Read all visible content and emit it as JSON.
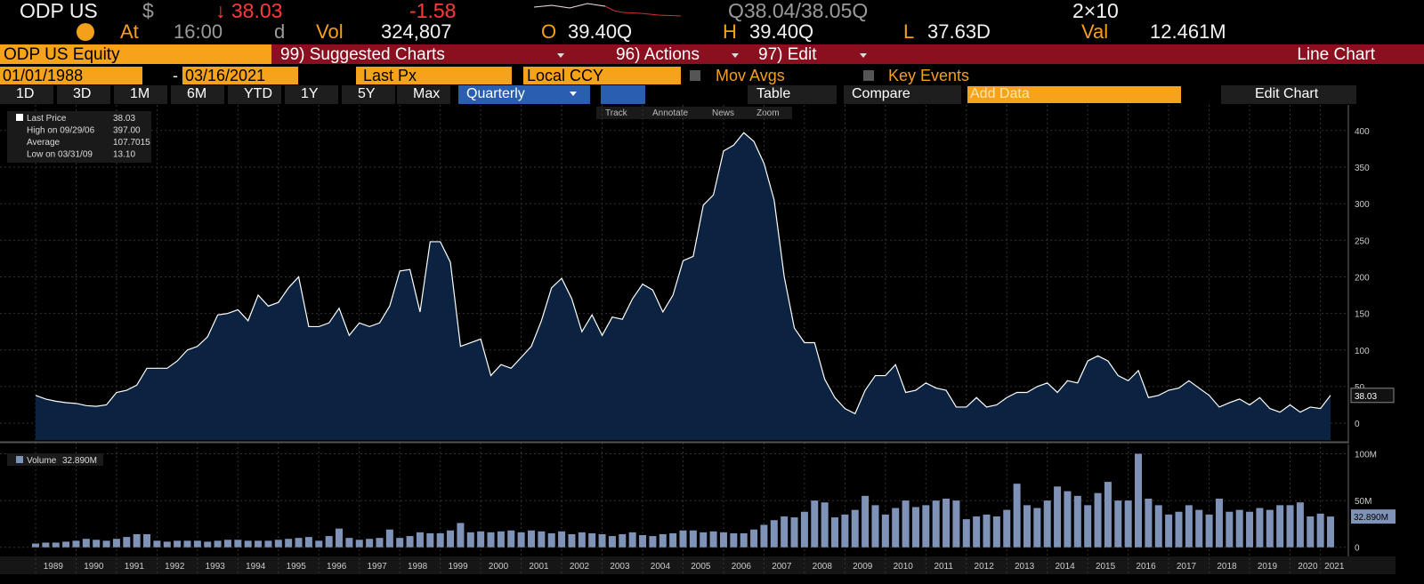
{
  "header": {
    "ticker": "ODP US",
    "currency": "$",
    "last": "↓ 38.03",
    "change": "-1.58",
    "quote": "Q38.04/38.05Q",
    "size": "2×10",
    "at": "At",
    "time": "16:00",
    "time_src": "d",
    "vol_label": "Vol",
    "vol": "324,807",
    "open_label": "O",
    "open": "39.40Q",
    "high_label": "H",
    "high": "39.40Q",
    "low_label": "L",
    "low": "37.63D",
    "val_label": "Val",
    "val": "12.461M"
  },
  "menu": {
    "security": "ODP US Equity",
    "suggested": "99) Suggested Charts",
    "actions": "96) Actions",
    "edit": "97) Edit",
    "chart_kind": "Line Chart"
  },
  "settings": {
    "start": "01/01/1988",
    "dash": "-",
    "end": "03/16/2021",
    "field": "Last Px",
    "ccy": "Local CCY",
    "mov_avgs": "Mov Avgs",
    "key_events": "Key Events"
  },
  "periods": [
    "1D",
    "3D",
    "1M",
    "6M",
    "YTD",
    "1Y",
    "5Y",
    "Max"
  ],
  "tools": {
    "frequency": "Quarterly",
    "table": "Table",
    "compare": "Compare",
    "add_data": "Add Data",
    "edit_chart": "Edit Chart"
  },
  "chart_tools": [
    "Track",
    "Annotate",
    "News",
    "Zoom"
  ],
  "chart_data": [
    {
      "type": "line",
      "stats": [
        {
          "label": "Last Price",
          "value": "38.03"
        },
        {
          "label": "High on 09/29/06",
          "value": "397.00"
        },
        {
          "label": "Average",
          "value": "107.7015"
        },
        {
          "label": "Low on 03/31/09",
          "value": "13.10"
        }
      ],
      "categories": [
        null,
        "1989",
        null,
        null,
        null,
        "1990",
        null,
        null,
        null,
        "1991",
        null,
        null,
        null,
        "1992",
        null,
        null,
        null,
        "1993",
        null,
        null,
        null,
        "1994",
        null,
        null,
        null,
        "1995",
        null,
        null,
        null,
        "1996",
        null,
        null,
        null,
        "1997",
        null,
        null,
        null,
        "1998",
        null,
        null,
        null,
        "1999",
        null,
        null,
        null,
        "2000",
        null,
        null,
        null,
        "2001",
        null,
        null,
        null,
        "2002",
        null,
        null,
        null,
        "2003",
        null,
        null,
        null,
        "2004",
        null,
        null,
        null,
        "2005",
        null,
        null,
        null,
        "2006",
        null,
        null,
        null,
        "2007",
        null,
        null,
        null,
        "2008",
        null,
        null,
        null,
        "2009",
        null,
        null,
        null,
        "2010",
        null,
        null,
        null,
        "2011",
        null,
        null,
        null,
        "2012",
        null,
        null,
        null,
        "2013",
        null,
        null,
        null,
        "2014",
        null,
        null,
        null,
        "2015",
        null,
        null,
        null,
        "2016",
        null,
        null,
        null,
        "2017",
        null,
        null,
        null,
        "2018",
        null,
        null,
        null,
        "2019",
        null,
        null,
        null,
        "2020",
        null,
        null,
        "2021"
      ],
      "series": [
        {
          "name": "Last Price",
          "color": "#ffffff",
          "fill": "#0b2240",
          "values": [
            38,
            33,
            30,
            28,
            27,
            24,
            23,
            25,
            42,
            45,
            52,
            75,
            75,
            75,
            85,
            100,
            105,
            118,
            148,
            150,
            155,
            140,
            175,
            160,
            165,
            185,
            200,
            132,
            132,
            137,
            157,
            120,
            137,
            132,
            137,
            160,
            208,
            210,
            152,
            248,
            248,
            220,
            105,
            110,
            115,
            65,
            80,
            75,
            90,
            105,
            140,
            185,
            198,
            170,
            125,
            148,
            120,
            145,
            142,
            170,
            190,
            182,
            152,
            175,
            222,
            228,
            298,
            312,
            372,
            380,
            397,
            385,
            355,
            305,
            200,
            130,
            110,
            110,
            60,
            35,
            20,
            13,
            45,
            65,
            65,
            80,
            42,
            45,
            55,
            48,
            45,
            22,
            22,
            35,
            22,
            25,
            35,
            42,
            42,
            50,
            55,
            42,
            58,
            55,
            85,
            92,
            85,
            65,
            58,
            72,
            35,
            38,
            45,
            48,
            58,
            48,
            38,
            22,
            28,
            33,
            25,
            35,
            20,
            15,
            25,
            15,
            22,
            20,
            38.03
          ]
        }
      ],
      "ylim": [
        -23,
        435
      ],
      "yticks": [
        0,
        50,
        100,
        150,
        200,
        250,
        300,
        350,
        400
      ],
      "grid": true
    },
    {
      "type": "bar",
      "legend_value": "32.890M",
      "series": [
        {
          "name": "Volume",
          "color": "#7f93b8",
          "values": [
            4,
            5,
            5,
            6,
            7,
            9,
            8,
            7,
            9,
            11,
            14,
            14,
            7,
            6,
            7,
            7,
            7,
            6,
            7,
            8,
            8,
            7,
            7,
            7,
            8,
            9,
            10,
            11,
            7,
            12,
            20,
            10,
            8,
            9,
            10,
            19,
            10,
            12,
            16,
            15,
            15,
            18,
            26,
            16,
            17,
            16,
            17,
            18,
            16,
            18,
            17,
            15,
            17,
            14,
            16,
            15,
            14,
            12,
            14,
            16,
            13,
            12,
            14,
            15,
            18,
            18,
            16,
            17,
            16,
            15,
            15,
            19,
            24,
            29,
            33,
            32,
            38,
            50,
            48,
            32,
            35,
            40,
            55,
            45,
            35,
            42,
            50,
            43,
            45,
            50,
            52,
            50,
            30,
            33,
            35,
            33,
            40,
            68,
            45,
            42,
            50,
            65,
            60,
            55,
            45,
            58,
            70,
            50,
            50,
            100,
            52,
            45,
            35,
            38,
            45,
            40,
            35,
            52,
            38,
            40,
            38,
            42,
            40,
            45,
            45,
            48,
            33,
            36,
            32.89
          ]
        }
      ],
      "ylim": [
        -6,
        110
      ],
      "yticks": [
        {
          "value": 0,
          "label": "0"
        },
        {
          "value": 50,
          "label": "50M"
        },
        {
          "value": 100,
          "label": "100M"
        }
      ],
      "grid": true
    }
  ]
}
